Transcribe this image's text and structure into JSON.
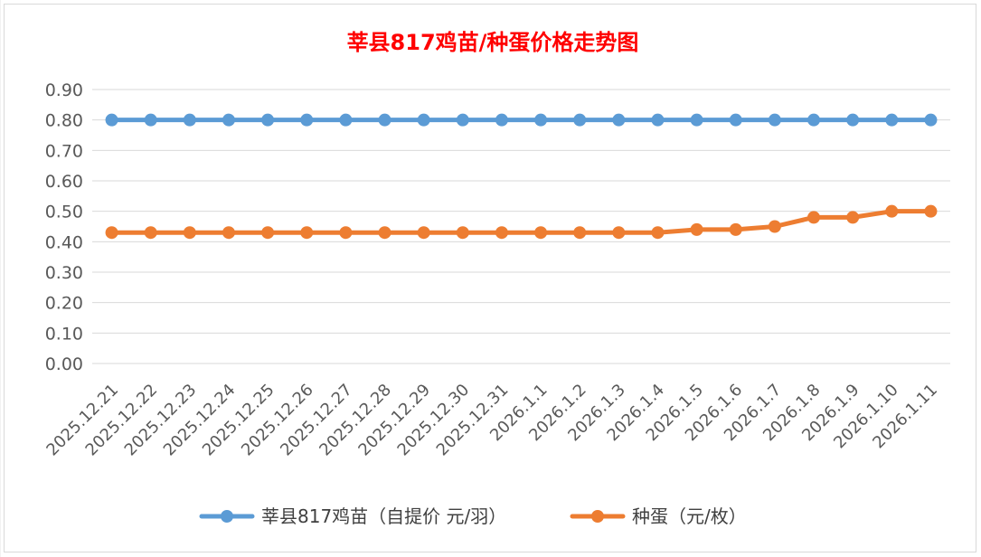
{
  "chart_data": {
    "type": "line",
    "title": "莘县817鸡苗/种蛋价格走势图",
    "xlabel": "",
    "ylabel": "",
    "ylim": [
      0,
      0.9
    ],
    "yticks": [
      "0.00",
      "0.10",
      "0.20",
      "0.30",
      "0.40",
      "0.50",
      "0.60",
      "0.70",
      "0.80",
      "0.90"
    ],
    "grid": true,
    "legend_position": "bottom",
    "categories": [
      "2025.12.21",
      "2025.12.22",
      "2025.12.23",
      "2025.12.24",
      "2025.12.25",
      "2025.12.26",
      "2025.12.27",
      "2025.12.28",
      "2025.12.29",
      "2025.12.30",
      "2025.12.31",
      "2026.1.1",
      "2026.1.2",
      "2026.1.3",
      "2026.1.4",
      "2026.1.5",
      "2026.1.6",
      "2026.1.7",
      "2026.1.8",
      "2026.1.9",
      "2026.1.10",
      "2026.1.11"
    ],
    "series": [
      {
        "name": "莘县817鸡苗（自提价 元/羽）",
        "color": "#5b9bd5",
        "values": [
          0.8,
          0.8,
          0.8,
          0.8,
          0.8,
          0.8,
          0.8,
          0.8,
          0.8,
          0.8,
          0.8,
          0.8,
          0.8,
          0.8,
          0.8,
          0.8,
          0.8,
          0.8,
          0.8,
          0.8,
          0.8,
          0.8
        ]
      },
      {
        "name": "种蛋（元/枚）",
        "color": "#ed7d31",
        "values": [
          0.43,
          0.43,
          0.43,
          0.43,
          0.43,
          0.43,
          0.43,
          0.43,
          0.43,
          0.43,
          0.43,
          0.43,
          0.43,
          0.43,
          0.43,
          0.44,
          0.44,
          0.45,
          0.48,
          0.48,
          0.5,
          0.5
        ]
      }
    ]
  }
}
